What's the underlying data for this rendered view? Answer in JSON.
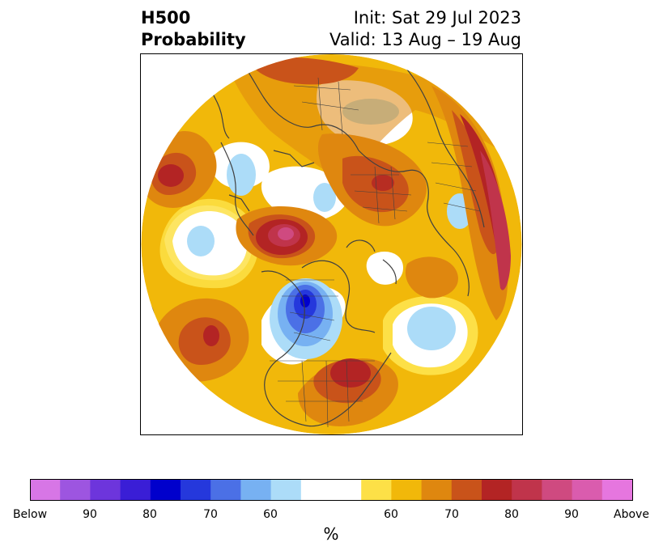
{
  "title": {
    "left_line1": "H500",
    "left_line2": "Probability",
    "right_line1": "Init: Sat 29 Jul 2023",
    "right_line2": "Valid: 13 Aug – 19 Aug"
  },
  "map": {
    "projection": "north-polar-stereographic",
    "background_color": "#ffffff",
    "coastline_color": "#404040"
  },
  "colorbar": {
    "unit_label": "%",
    "below_colors": [
      "#d776e6",
      "#9d55e0",
      "#6d35dc",
      "#3a1ed6",
      "#0000cc",
      "#2538dc",
      "#4b70e6",
      "#77b1f2",
      "#acdcf8"
    ],
    "neutral_color": "#ffffff",
    "above_colors": [
      "#fde047",
      "#f1b80a",
      "#df870f",
      "#c9531a",
      "#b32424",
      "#c0344b",
      "#cf4a80",
      "#da5cae",
      "#e676df"
    ],
    "tick_labels": [
      "Below",
      "90",
      "80",
      "70",
      "60",
      "60",
      "70",
      "80",
      "90",
      "Above"
    ]
  }
}
